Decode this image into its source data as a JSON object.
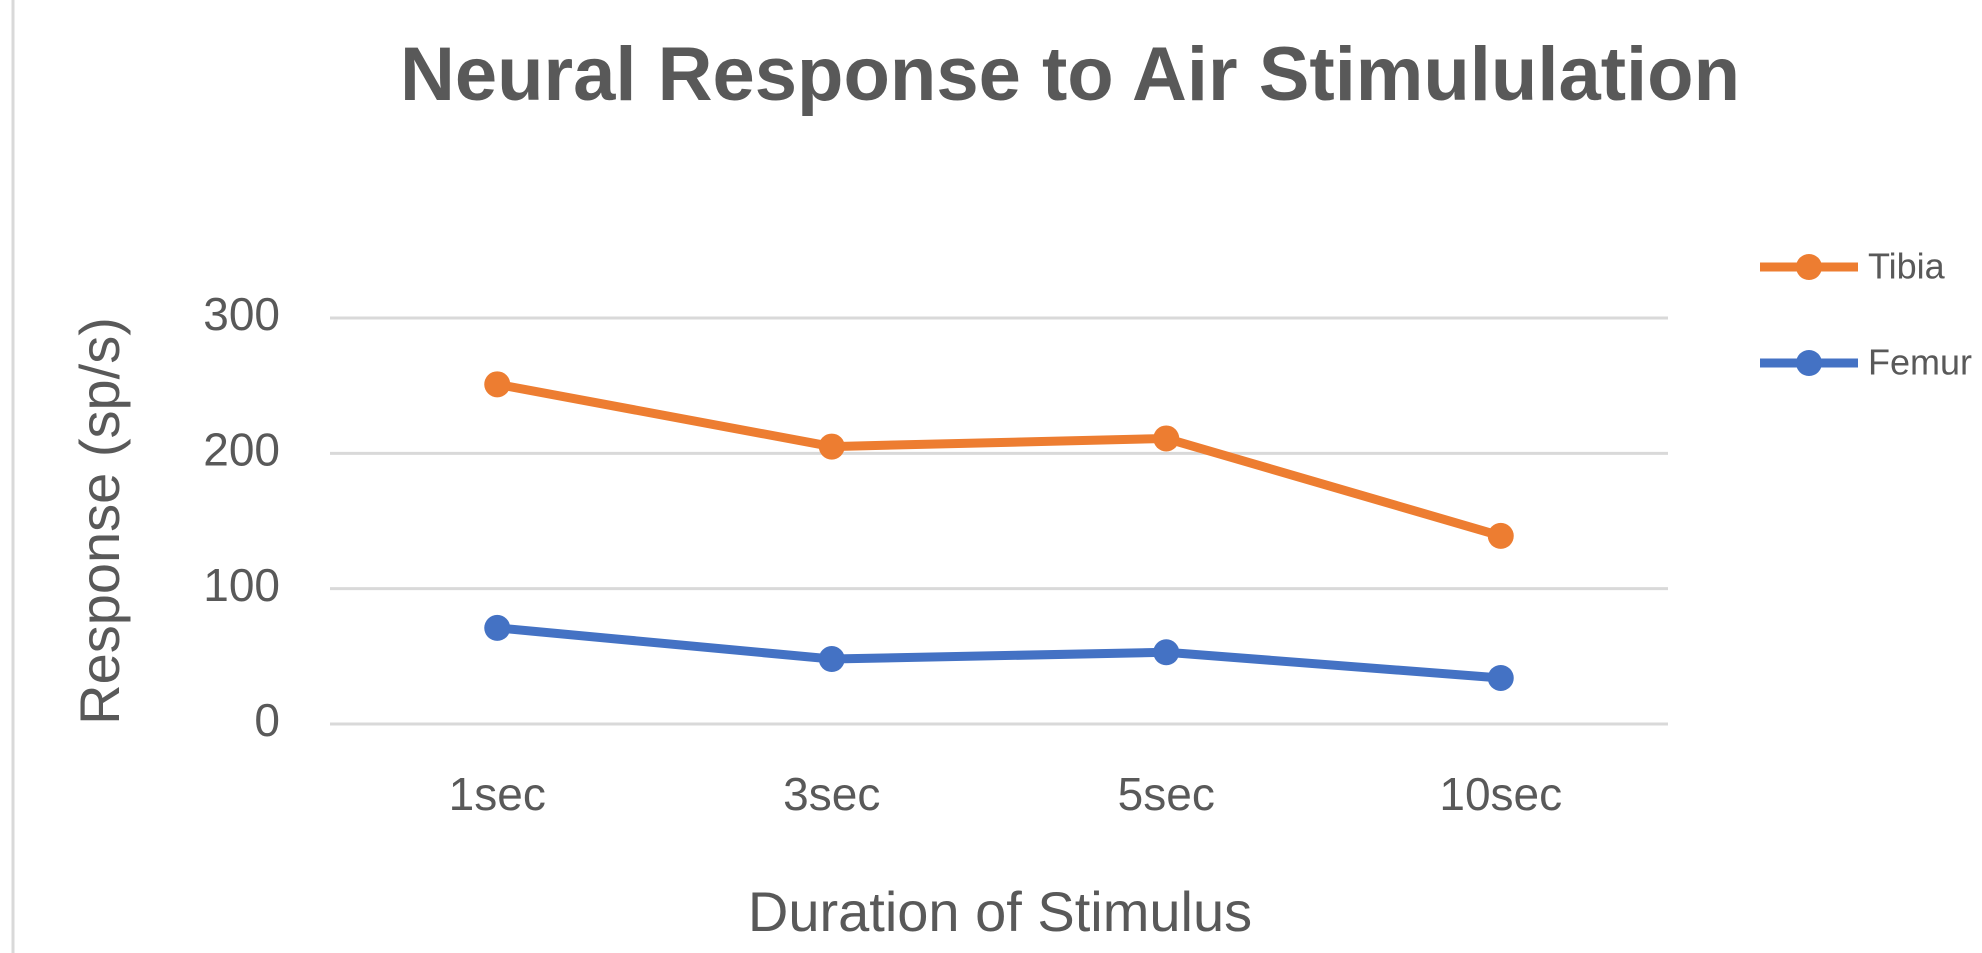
{
  "chart_data": {
    "type": "line",
    "title": "Neural Response to Air Stimululation",
    "x_label": "Duration of Stimulus",
    "y_label": "Response (sp/s)",
    "categories": [
      "1sec",
      "3sec",
      "5sec",
      "10sec"
    ],
    "series": [
      {
        "name": "Tibia",
        "color": "#ed7d31",
        "values": [
          251,
          205,
          211,
          139
        ]
      },
      {
        "name": "Femur",
        "color": "#4472c4",
        "values": [
          71,
          48,
          53,
          34
        ]
      }
    ],
    "ylim": [
      0,
      300
    ],
    "yticks": [
      0,
      100,
      200,
      300
    ],
    "grid": true,
    "legend": "right"
  }
}
